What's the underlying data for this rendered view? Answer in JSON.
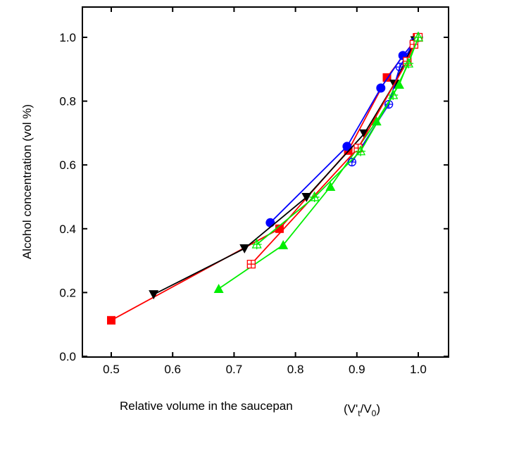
{
  "chart_data": {
    "type": "line",
    "xlabel": "Relative volume in the saucepan",
    "xlabel_unit": "(V't/V0)",
    "ylabel": "Alcohol concentration (vol %)",
    "xlim": [
      0.45,
      1.05
    ],
    "ylim": [
      0.0,
      1.05
    ],
    "xticks": [
      "0.5",
      "0.6",
      "0.7",
      "0.8",
      "0.9",
      "1.0"
    ],
    "yticks": [
      "0.0",
      "0.2",
      "0.4",
      "0.6",
      "0.8",
      "1.0"
    ],
    "grid": false,
    "series": [
      {
        "color": "#ff0000",
        "marker": "square-filled",
        "x": [
          0.5,
          0.774,
          0.886,
          0.949,
          0.998
        ],
        "y": [
          0.113,
          0.4,
          0.645,
          0.874,
          1.0
        ]
      },
      {
        "color": "#0000ff",
        "marker": "circle-filled",
        "x": [
          0.759,
          0.884,
          0.939,
          0.975,
          1.0
        ],
        "y": [
          0.419,
          0.658,
          0.841,
          0.943,
          1.0
        ]
      },
      {
        "color": "#000000",
        "marker": "triangle-down-filled",
        "x": [
          0.569,
          0.717,
          0.818,
          0.912,
          0.961,
          0.995
        ],
        "y": [
          0.194,
          0.338,
          0.499,
          0.698,
          0.854,
          0.99
        ]
      },
      {
        "color": "#00ee00",
        "marker": "triangle-up-filled",
        "x": [
          0.675,
          0.78,
          0.857,
          0.932,
          0.969,
          1.0
        ],
        "y": [
          0.212,
          0.349,
          0.532,
          0.737,
          0.852,
          1.0
        ]
      },
      {
        "color": "#0000ff",
        "marker": "circle-crossed",
        "x": [
          0.892,
          0.952,
          0.97,
          0.993
        ],
        "y": [
          0.609,
          0.79,
          0.907,
          0.985
        ]
      },
      {
        "color": "#ff0000",
        "marker": "square-crossed",
        "x": [
          0.728,
          0.902,
          0.982,
          0.993,
          1.0
        ],
        "y": [
          0.289,
          0.653,
          0.925,
          0.978,
          1.0
        ]
      },
      {
        "color": "#00ee00",
        "marker": "star-crossed",
        "x": [
          0.737,
          0.831,
          0.906,
          0.959,
          0.984,
          1.0
        ],
        "y": [
          0.351,
          0.499,
          0.643,
          0.819,
          0.918,
          1.0
        ]
      }
    ]
  }
}
